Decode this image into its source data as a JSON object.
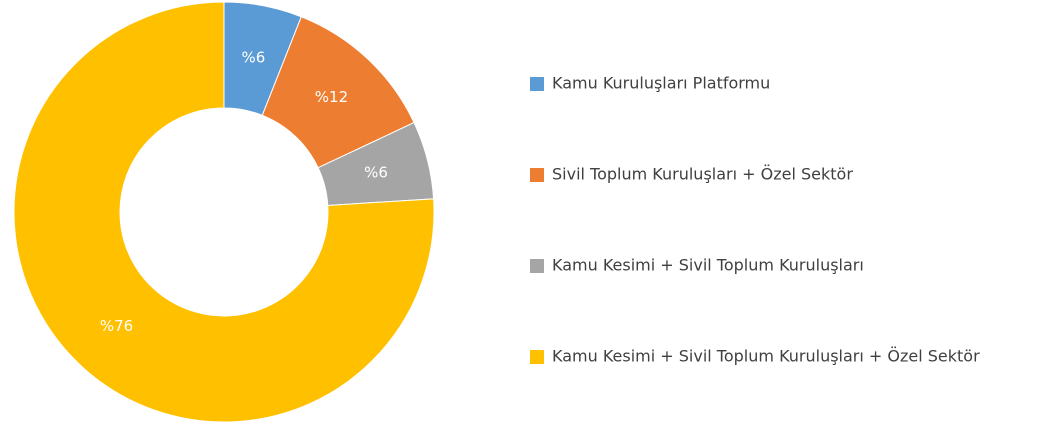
{
  "chart_data": {
    "type": "donut",
    "categories": [
      "Kamu Kuruluşları Platformu",
      "Sivil Toplum Kuruluşları + Özel Sektör",
      "Kamu Kesimi + Sivil Toplum Kuruluşları",
      "Kamu Kesimi + Sivil Toplum Kuruluşları + Özel Sektör"
    ],
    "values": [
      6,
      12,
      6,
      76
    ],
    "value_labels": [
      "%6",
      "%12",
      "%6",
      "%76"
    ],
    "colors": [
      "#5b9bd5",
      "#ed7d31",
      "#a5a5a5",
      "#ffc000"
    ],
    "legend": "right"
  }
}
